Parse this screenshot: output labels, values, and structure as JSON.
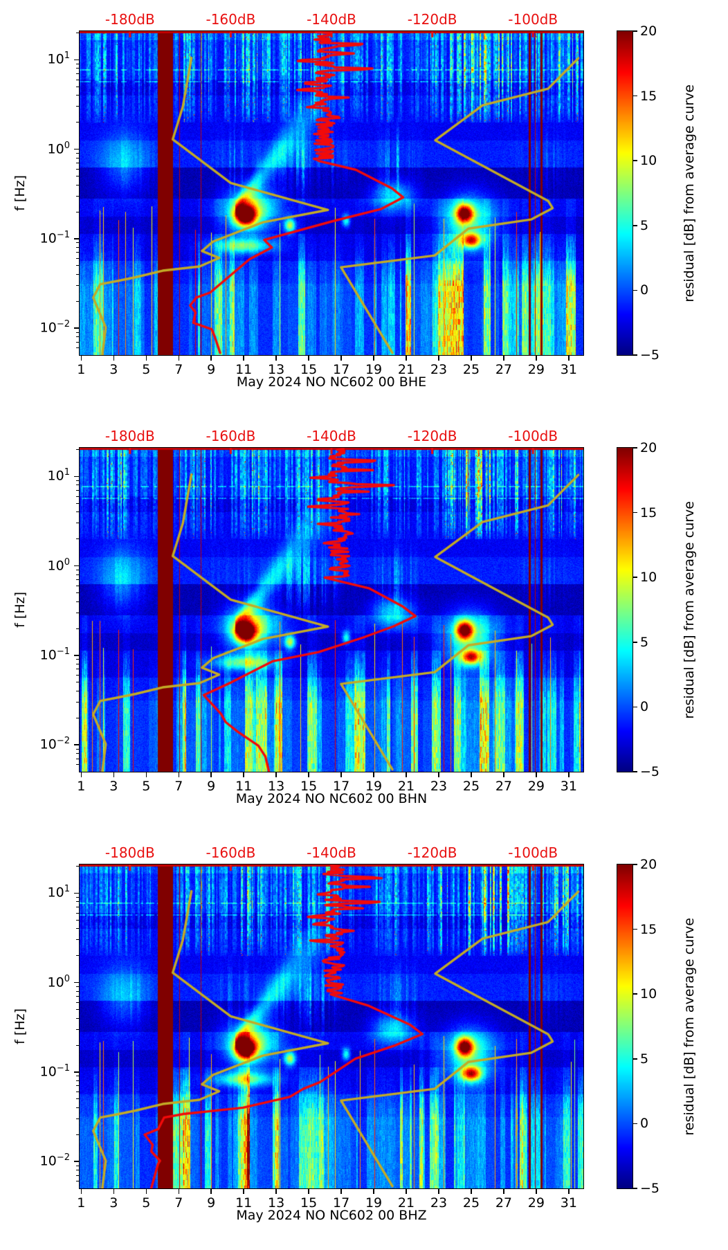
{
  "chart_data": {
    "type": "heatmap",
    "subtype": "psd-residual-spectrogram-with-curves",
    "month_label": "May 2024",
    "station_code": "NO NC602 00",
    "panels": [
      {
        "id": "BHE",
        "title": "May 2024 NO NC602 00 BHE",
        "seed": 11,
        "hf_base_dB": -141.5,
        "median_psd_dB_vs_Hz": [
          [
            -143,
            0.74
          ],
          [
            -135.3,
            0.59
          ],
          [
            -128.5,
            0.365
          ],
          [
            -125.9,
            0.29
          ],
          [
            -129.8,
            0.214
          ],
          [
            -139.9,
            0.158
          ],
          [
            -153.6,
            0.097
          ],
          [
            -151.5,
            0.08
          ],
          [
            -156.6,
            0.059
          ],
          [
            -164.3,
            0.025
          ],
          [
            -166.9,
            0.022
          ],
          [
            -168.4,
            0.018
          ],
          [
            -166.6,
            0.015
          ],
          [
            -167.3,
            0.0115
          ],
          [
            -164.3,
            0.0097
          ],
          [
            -163.6,
            0.0079
          ],
          [
            -161.6,
            0.0053
          ]
        ]
      },
      {
        "id": "BHN",
        "title": "May 2024 NO NC602 00 BHN",
        "seed": 23,
        "hf_base_dB": -138.5,
        "median_psd_dB_vs_Hz": [
          [
            -141,
            0.74
          ],
          [
            -133,
            0.56
          ],
          [
            -126,
            0.35
          ],
          [
            -123.5,
            0.275
          ],
          [
            -128,
            0.21
          ],
          [
            -134,
            0.158
          ],
          [
            -142.5,
            0.109
          ],
          [
            -152,
            0.086
          ],
          [
            -160,
            0.05
          ],
          [
            -165,
            0.036
          ],
          [
            -162.5,
            0.0224
          ],
          [
            -160.7,
            0.0179
          ],
          [
            -158,
            0.014
          ],
          [
            -154.7,
            0.0098
          ],
          [
            -152.9,
            0.0074
          ],
          [
            -152,
            0.005
          ]
        ]
      },
      {
        "id": "BHZ",
        "title": "May 2024 NO NC602 00 BHZ",
        "seed": 37,
        "hf_base_dB": -139.5,
        "median_psd_dB_vs_Hz": [
          [
            -140,
            0.74
          ],
          [
            -133,
            0.55
          ],
          [
            -124.5,
            0.34
          ],
          [
            -122.5,
            0.266
          ],
          [
            -127,
            0.2
          ],
          [
            -134.7,
            0.141
          ],
          [
            -142.5,
            0.077
          ],
          [
            -146.1,
            0.065
          ],
          [
            -148,
            0.053
          ],
          [
            -157,
            0.04
          ],
          [
            -169,
            0.034
          ],
          [
            -173.1,
            0.031
          ],
          [
            -174.9,
            0.023
          ],
          [
            -176.5,
            0.02
          ],
          [
            -175.9,
            0.0154
          ],
          [
            -175.9,
            0.013
          ],
          [
            -174.5,
            0.0102
          ],
          [
            -174.2,
            0.0094
          ],
          [
            -175.6,
            0.005
          ]
        ]
      }
    ],
    "x_axis": {
      "tick_days": [
        1,
        3,
        5,
        7,
        9,
        11,
        13,
        15,
        17,
        19,
        21,
        23,
        25,
        27,
        29,
        31
      ],
      "range_days": [
        0.9,
        31.9
      ]
    },
    "y_axis": {
      "label": "f [Hz]",
      "base": 10,
      "tick_exponents": [
        1,
        0,
        -1,
        -2
      ],
      "log10_range": [
        -2.3,
        1.32
      ]
    },
    "top_axis": {
      "labels": [
        "-180dB",
        "-160dB",
        "-140dB",
        "-120dB",
        "-100dB"
      ],
      "dB_values": [
        -180,
        -160,
        -140,
        -120,
        -100
      ],
      "axis_fractions": [
        0.1,
        0.3,
        0.5,
        0.7,
        0.9
      ],
      "color": "#e80f0f"
    },
    "colorbar": {
      "label": "residual [dB] from average curve",
      "tick_labels": [
        "20",
        "15",
        "10",
        "5",
        "0",
        "−5"
      ],
      "tick_values": [
        20,
        15,
        10,
        5,
        0,
        -5
      ],
      "vmin": -5,
      "vmax": 20,
      "colormap": "jet"
    },
    "overlay_curves": {
      "model_color": "#c3ab26",
      "median_color": "#f20a0a",
      "low_noise_model_dB_vs_Hz": [
        [
          -167.8,
          10.5
        ],
        [
          -169.5,
          3
        ],
        [
          -171.5,
          1.29
        ],
        [
          -160,
          0.42
        ],
        [
          -140.7,
          0.21
        ],
        [
          -153.6,
          0.153
        ],
        [
          -163.5,
          0.093
        ],
        [
          -165.7,
          0.073
        ],
        [
          -162.3,
          0.061
        ],
        [
          -166.2,
          0.049
        ],
        [
          -173.5,
          0.044
        ],
        [
          -179,
          0.037
        ],
        [
          -182.2,
          0.034
        ],
        [
          -185.9,
          0.031
        ],
        [
          -187.3,
          0.022
        ],
        [
          -184.8,
          0.0102
        ],
        [
          -185.5,
          0.005
        ]
      ],
      "high_noise_model_dB_vs_Hz": [
        [
          -91,
          10.4
        ],
        [
          -97,
          4.75
        ],
        [
          -110,
          3.1
        ],
        [
          -119.4,
          1.26
        ],
        [
          -97,
          0.265
        ],
        [
          -96.1,
          0.22
        ],
        [
          -100.4,
          0.164
        ],
        [
          -112.8,
          0.13
        ],
        [
          -119.5,
          0.065
        ],
        [
          -138.1,
          0.048
        ],
        [
          -127.9,
          0.0053
        ]
      ]
    },
    "features": {
      "data_gap_band_days": [
        5.72,
        6.62
      ],
      "event_line_days": [
        7.02,
        8.37,
        28.9
      ],
      "strong_event_line_days": [
        28.56,
        29.32
      ],
      "hot_spots": [
        {
          "day": 11.1,
          "freq_Hz": 0.18
        },
        {
          "day": 13.85,
          "freq_Hz": 0.14
        },
        {
          "day": 17.3,
          "freq_Hz": 0.16
        },
        {
          "day": 24.6,
          "freq_Hz": 0.19
        },
        {
          "day": 25.0,
          "freq_Hz": 0.095
        }
      ],
      "interference_line_freqs_Hz": [
        7.7,
        5.7
      ],
      "needle_days": [
        2.12,
        2.34,
        3.3,
        4.2,
        9.0,
        13.2,
        16.6,
        19.05,
        21.45,
        23.3,
        26.45,
        27.75
      ]
    }
  }
}
